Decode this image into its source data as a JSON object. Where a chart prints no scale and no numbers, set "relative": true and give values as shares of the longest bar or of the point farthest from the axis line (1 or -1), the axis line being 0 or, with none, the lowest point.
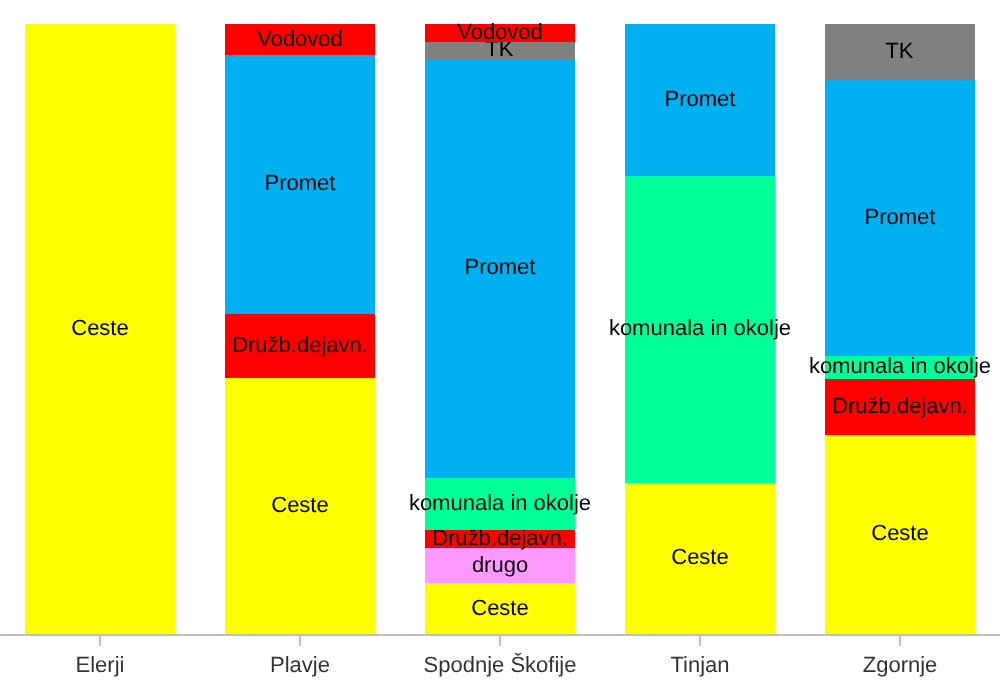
{
  "chart_data": {
    "type": "bar",
    "stacked": true,
    "relative": true,
    "legend": false,
    "categories": [
      "Elerji",
      "Plavje",
      "Spodnje Škofije",
      "Tinjan",
      "Zgornje"
    ],
    "series": [
      {
        "name": "Ceste",
        "color": "#ffff00",
        "values": [
          1,
          0.42,
          0.083,
          0.248,
          0.327
        ]
      },
      {
        "name": "drugo",
        "color": "#ff99ff",
        "values": [
          null,
          null,
          0.058,
          null,
          null
        ]
      },
      {
        "name": "Družb.dejavn.",
        "color": "#ff0000",
        "values": [
          null,
          0.105,
          0.029,
          null,
          0.091
        ]
      },
      {
        "name": "komunala in okolje",
        "color": "#00ff99",
        "values": [
          null,
          null,
          0.086,
          0.503,
          0.038
        ]
      },
      {
        "name": "Promet",
        "color": "#00b0f0",
        "values": [
          null,
          0.424,
          0.687,
          0.249,
          0.453
        ]
      },
      {
        "name": "TK",
        "color": "#808080",
        "values": [
          null,
          null,
          0.028,
          null,
          0.091
        ]
      },
      {
        "name": "Vodovod",
        "color": "#ff0000",
        "values": [
          null,
          0.051,
          0.029,
          null,
          null
        ]
      }
    ]
  }
}
